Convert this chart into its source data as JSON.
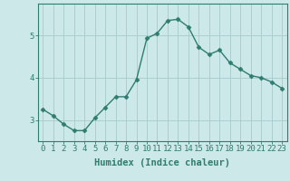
{
  "x": [
    0,
    1,
    2,
    3,
    4,
    5,
    6,
    7,
    8,
    9,
    10,
    11,
    12,
    13,
    14,
    15,
    16,
    17,
    18,
    19,
    20,
    21,
    22,
    23
  ],
  "y": [
    3.25,
    3.1,
    2.9,
    2.75,
    2.75,
    3.05,
    3.3,
    3.55,
    3.55,
    3.95,
    4.93,
    5.05,
    5.35,
    5.38,
    5.2,
    4.72,
    4.55,
    4.65,
    4.35,
    4.2,
    4.05,
    4.0,
    3.9,
    3.75
  ],
  "line_color": "#2e7d6e",
  "marker": "D",
  "marker_size": 2.5,
  "bg_color": "#cce8e8",
  "grid_color": "#aacece",
  "axis_color": "#2e7d6e",
  "xlabel": "Humidex (Indice chaleur)",
  "ylim": [
    2.5,
    5.75
  ],
  "xlim": [
    -0.5,
    23.5
  ],
  "yticks": [
    3,
    4,
    5
  ],
  "xticks": [
    0,
    1,
    2,
    3,
    4,
    5,
    6,
    7,
    8,
    9,
    10,
    11,
    12,
    13,
    14,
    15,
    16,
    17,
    18,
    19,
    20,
    21,
    22,
    23
  ],
  "xlabel_fontsize": 7.5,
  "tick_fontsize": 6.5,
  "tick_color": "#2e7d6e",
  "linewidth": 1.0
}
